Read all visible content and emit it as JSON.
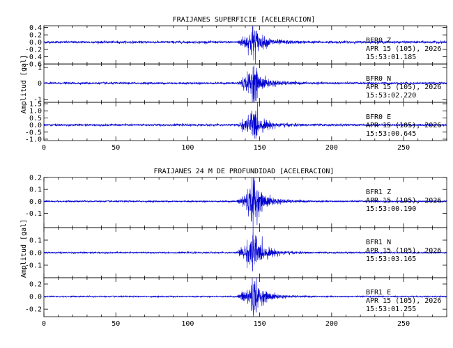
{
  "chart_data": [
    {
      "type": "line",
      "title": "FRAIJANES SUPERFICIE [ACELERACION]",
      "ylabel": "Amplitud [gal]",
      "xlim": [
        0,
        280
      ],
      "x_ticks": [
        "0",
        "50",
        "100",
        "150",
        "200",
        "250"
      ],
      "x_tick_values": [
        0,
        50,
        100,
        150,
        200,
        250
      ],
      "color": "#0000d0",
      "panels": [
        {
          "station": "BFR0",
          "component": "Z",
          "label_line1": "BFR0   Z",
          "label_line2": "APR 15 (105), 2026",
          "label_line3": "15:53:01.185",
          "ylim": [
            -0.6,
            0.45
          ],
          "y_ticks": [
            "0.4",
            "0.2",
            "0.0",
            "-0.2",
            "-0.4",
            "-0.6"
          ],
          "y_tick_values": [
            0.4,
            0.2,
            0.0,
            -0.2,
            -0.4,
            -0.6
          ],
          "peak_amplitude": 0.45,
          "noise_amplitude": 0.03
        },
        {
          "station": "BFR0",
          "component": "N",
          "label_line1": "BFR0   N",
          "label_line2": "APR 15 (105), 2026",
          "label_line3": "15:53:02.220",
          "ylim": [
            -1.2,
            1.2
          ],
          "y_ticks": [
            "1",
            "0",
            "-1"
          ],
          "y_tick_values": [
            1,
            0,
            -1
          ],
          "peak_amplitude": 1.1,
          "noise_amplitude": 0.06
        },
        {
          "station": "BFR0",
          "component": "E",
          "label_line1": "BFR0   E",
          "label_line2": "APR 15 (105), 2026",
          "label_line3": "15:53:00.645",
          "ylim": [
            -1.1,
            1.6
          ],
          "y_ticks": [
            "1.5",
            "1.0",
            "0.5",
            "0.0",
            "-0.5",
            "-1.0"
          ],
          "y_tick_values": [
            1.5,
            1.0,
            0.5,
            0.0,
            -0.5,
            -1.0
          ],
          "peak_amplitude": 1.1,
          "noise_amplitude": 0.07
        }
      ]
    },
    {
      "type": "line",
      "title": "FRAIJANES 24 M DE PROFUNDIDAD [ACELERACION]",
      "ylabel": "Amplitud [gal]",
      "xlim": [
        0,
        280
      ],
      "x_ticks": [
        "0",
        "50",
        "100",
        "150",
        "200",
        "250"
      ],
      "x_tick_values": [
        0,
        50,
        100,
        150,
        200,
        250
      ],
      "color": "#0000d0",
      "panels": [
        {
          "station": "BFR1",
          "component": "Z",
          "label_line1": "BFR1   Z",
          "label_line2": "APR 15 (105), 2026",
          "label_line3": "15:53:00.190",
          "ylim": [
            -0.22,
            0.2
          ],
          "y_ticks": [
            "0.2",
            "0.1",
            "0.0",
            "-0.1"
          ],
          "y_tick_values": [
            0.2,
            0.1,
            0.0,
            -0.1
          ],
          "peak_amplitude": 0.2,
          "noise_amplitude": 0.006
        },
        {
          "station": "BFR1",
          "component": "N",
          "label_line1": "BFR1   N",
          "label_line2": "APR 15 (105), 2026",
          "label_line3": "15:53:03.165",
          "ylim": [
            -0.2,
            0.2
          ],
          "y_ticks": [
            "0.1",
            "0.0",
            "-0.1"
          ],
          "y_tick_values": [
            0.1,
            0.0,
            -0.1
          ],
          "peak_amplitude": 0.17,
          "noise_amplitude": 0.006
        },
        {
          "station": "BFR1",
          "component": "E",
          "label_line1": "BFR1   E",
          "label_line2": "APR 15 (105), 2026",
          "label_line3": "15:53:01.255",
          "ylim": [
            -0.32,
            0.3
          ],
          "y_ticks": [
            "0.2",
            "0.0",
            "-0.2"
          ],
          "y_tick_values": [
            0.2,
            0.0,
            -0.2
          ],
          "peak_amplitude": 0.3,
          "noise_amplitude": 0.01
        }
      ]
    }
  ]
}
